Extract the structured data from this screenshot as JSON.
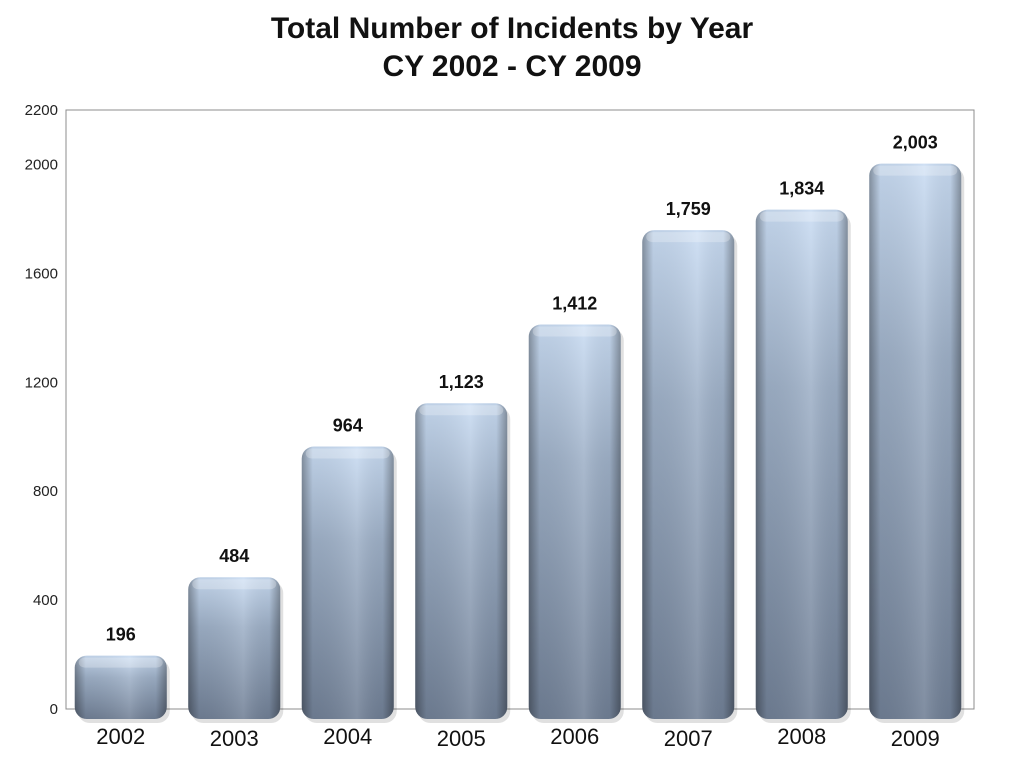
{
  "chart_data": {
    "type": "bar",
    "title": "Total Number of Incidents by Year",
    "subtitle": "CY 2002 - CY 2009",
    "categories": [
      "2002",
      "2003",
      "2004",
      "2005",
      "2006",
      "2007",
      "2008",
      "2009"
    ],
    "values": [
      196,
      484,
      964,
      1123,
      1412,
      1759,
      1834,
      2003
    ],
    "data_labels": [
      "196",
      "484",
      "964",
      "1,123",
      "1,412",
      "1,759",
      "1,834",
      "2,003"
    ],
    "xlabel": "",
    "ylabel": "",
    "ylim": [
      0,
      2200
    ],
    "yticks": [
      0,
      400,
      800,
      1200,
      1600,
      2000,
      2200
    ],
    "grid": false,
    "legend": "none",
    "colors": {
      "bar_dark": "#6d7d93",
      "bar_mid": "#8d9db3",
      "bar_light": "#c8dcf4",
      "axis": "#808080"
    }
  }
}
